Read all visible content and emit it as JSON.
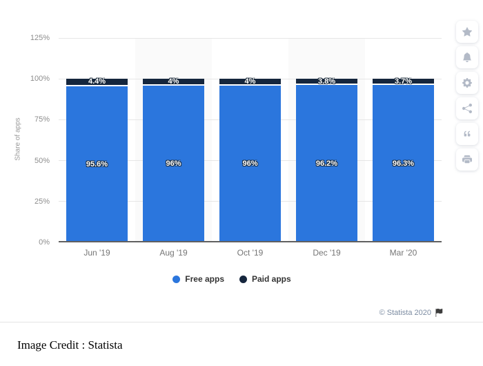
{
  "widget": {
    "copyright": "© Statista 2020"
  },
  "footer": {
    "image_credit": "Image Credit : Statista"
  },
  "sidebar": {
    "buttons": [
      {
        "name": "favorite",
        "icon": "star-icon"
      },
      {
        "name": "notifications",
        "icon": "bell-icon"
      },
      {
        "name": "settings",
        "icon": "gear-icon"
      },
      {
        "name": "share",
        "icon": "share-icon"
      },
      {
        "name": "cite",
        "icon": "quote-icon"
      },
      {
        "name": "print",
        "icon": "print-icon"
      }
    ]
  },
  "chart_data": {
    "type": "bar",
    "stacked": true,
    "title": "",
    "categories": [
      "Jun '19",
      "Aug '19",
      "Oct '19",
      "Dec '19",
      "Mar '20"
    ],
    "series": [
      {
        "name": "Free apps",
        "color": "#2b76dd",
        "values": [
          95.6,
          96,
          96,
          96.2,
          96.3
        ],
        "labels": [
          "95.6%",
          "96%",
          "96%",
          "96.2%",
          "96.3%"
        ]
      },
      {
        "name": "Paid apps",
        "color": "#15263d",
        "values": [
          4.4,
          4,
          4,
          3.8,
          3.7
        ],
        "labels": [
          "4.4%",
          "4%",
          "4%",
          "3.8%",
          "3.7%"
        ]
      }
    ],
    "xlabel": "",
    "ylabel": "Share of apps",
    "ylim": [
      0,
      125
    ],
    "yticks": [
      {
        "label": "0%",
        "value": 0
      },
      {
        "label": "25%",
        "value": 25
      },
      {
        "label": "50%",
        "value": 50
      },
      {
        "label": "75%",
        "value": 75
      },
      {
        "label": "100%",
        "value": 100
      },
      {
        "label": "125%",
        "value": 125
      }
    ],
    "grid": true,
    "legend_position": "bottom",
    "band_color": "#fafafa",
    "colors": {
      "gridline": "#e6e6e6",
      "axis_line": "#606060",
      "tick_text": "#8c8c8c",
      "category_text": "#757575",
      "legend_text": "#333333",
      "copyright_text": "#7b8ba1"
    }
  }
}
